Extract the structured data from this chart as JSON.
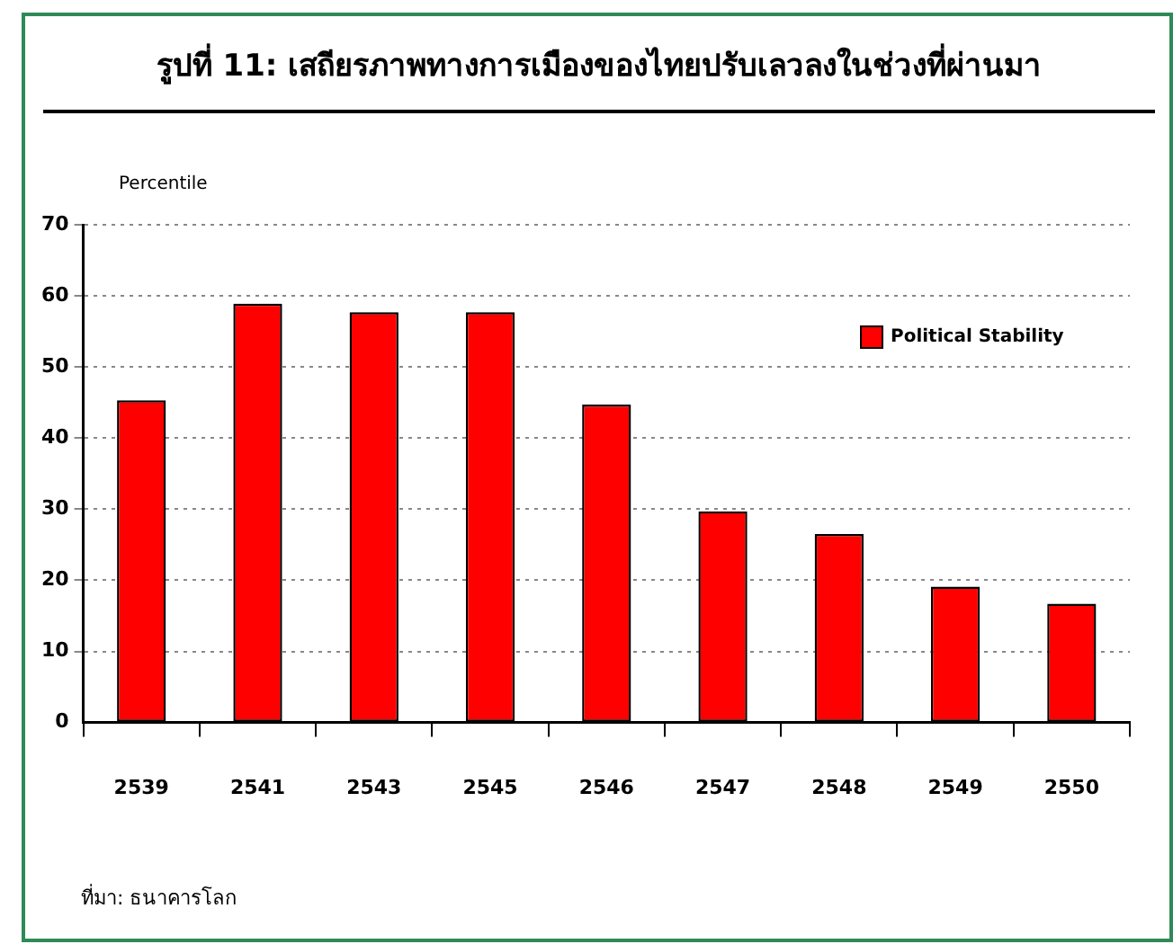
{
  "chart_data": {
    "type": "bar",
    "title": "รูปที่ 11: เสถียรภาพทางการเมืองของไทยปรับเลวลงในช่วงที่ผ่านมา",
    "ylabel": "Percentile",
    "annotations": [
      "ที่มา: ธนาคารโลก"
    ],
    "categories": [
      "2539",
      "2541",
      "2543",
      "2545",
      "2546",
      "2547",
      "2548",
      "2549",
      "2550"
    ],
    "series": [
      {
        "name": "Political Stability",
        "color": "#ff0000",
        "values": [
          45.3,
          58.9,
          57.7,
          57.7,
          44.7,
          29.7,
          26.5,
          19.1,
          16.7
        ]
      }
    ],
    "ylim": [
      0,
      70
    ],
    "yticks": [
      0,
      10,
      20,
      30,
      40,
      50,
      60,
      70
    ],
    "grid": "y",
    "legend": "top right"
  }
}
